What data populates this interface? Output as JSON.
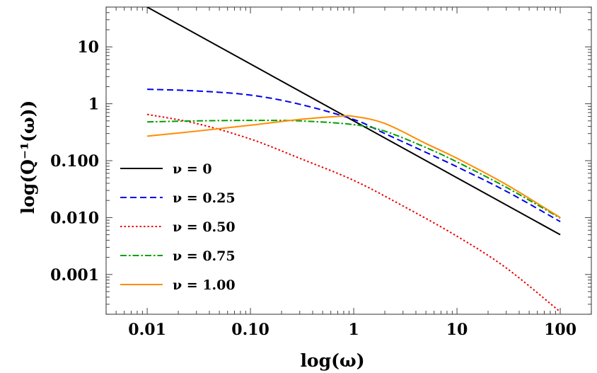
{
  "chart_data": {
    "type": "line",
    "title": "",
    "xlabel": "log(ω)",
    "ylabel": "log(Q⁻¹(ω))",
    "xscale": "log",
    "yscale": "log",
    "xlim": [
      0.004,
      200
    ],
    "ylim": [
      0.0002,
      50
    ],
    "xticks": [
      {
        "value": 0.01,
        "label": "0.01"
      },
      {
        "value": 0.1,
        "label": "0.10"
      },
      {
        "value": 1,
        "label": "1"
      },
      {
        "value": 10,
        "label": "10"
      },
      {
        "value": 100,
        "label": "100"
      }
    ],
    "yticks": [
      {
        "value": 0.001,
        "label": "0.001"
      },
      {
        "value": 0.01,
        "label": "0.010"
      },
      {
        "value": 0.1,
        "label": "0.100"
      },
      {
        "value": 1,
        "label": "1"
      },
      {
        "value": 10,
        "label": "10"
      }
    ],
    "grid": false,
    "legend_position": "left",
    "series": [
      {
        "name": "ν = 0",
        "color": "#000000",
        "dash": "solid",
        "points": [
          [
            0.01,
            50
          ],
          [
            100,
            0.005
          ]
        ]
      },
      {
        "name": "ν = 0.25",
        "color": "#0000ee",
        "dash": "dashed",
        "points": [
          [
            0.01,
            1.8
          ],
          [
            0.03,
            1.68
          ],
          [
            0.1,
            1.42
          ],
          [
            0.3,
            0.98
          ],
          [
            1,
            0.53
          ],
          [
            2,
            0.3
          ],
          [
            5,
            0.14
          ],
          [
            10,
            0.078
          ],
          [
            30,
            0.029
          ],
          [
            100,
            0.0085
          ]
        ]
      },
      {
        "name": "ν = 0.50",
        "color": "#ee0000",
        "dash": "dotted",
        "points": [
          [
            0.01,
            0.65
          ],
          [
            0.03,
            0.45
          ],
          [
            0.1,
            0.24
          ],
          [
            0.3,
            0.11
          ],
          [
            1,
            0.045
          ],
          [
            3,
            0.016
          ],
          [
            10,
            0.0047
          ],
          [
            30,
            0.0013
          ],
          [
            100,
            0.00022
          ]
        ]
      },
      {
        "name": "ν = 0.75",
        "color": "#00a000",
        "dash": "dashdot",
        "points": [
          [
            0.01,
            0.48
          ],
          [
            0.03,
            0.5
          ],
          [
            0.1,
            0.51
          ],
          [
            0.3,
            0.5
          ],
          [
            1,
            0.43
          ],
          [
            2,
            0.33
          ],
          [
            5,
            0.17
          ],
          [
            10,
            0.095
          ],
          [
            30,
            0.034
          ],
          [
            100,
            0.0098
          ]
        ]
      },
      {
        "name": "ν = 1.00",
        "color": "#ff8c00",
        "dash": "solid",
        "points": [
          [
            0.01,
            0.27
          ],
          [
            0.03,
            0.33
          ],
          [
            0.1,
            0.42
          ],
          [
            0.3,
            0.53
          ],
          [
            0.7,
            0.6
          ],
          [
            1,
            0.6
          ],
          [
            2,
            0.45
          ],
          [
            5,
            0.2
          ],
          [
            10,
            0.11
          ],
          [
            30,
            0.038
          ],
          [
            100,
            0.01
          ]
        ]
      }
    ]
  }
}
